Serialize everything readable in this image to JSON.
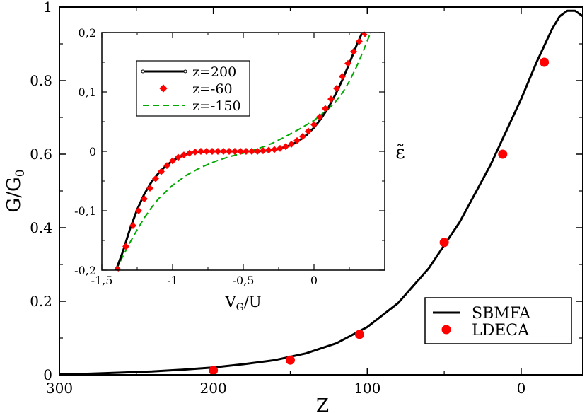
{
  "chart_data": [
    {
      "id": "main",
      "type": "line",
      "title": "",
      "xlabel": "Z",
      "ylabel": "G/G",
      "ylabel_sub": "0",
      "xlim": [
        300,
        -40
      ],
      "ylim": [
        0,
        1
      ],
      "xticks": [
        300,
        200,
        100,
        0
      ],
      "yticks": [
        0,
        0.2,
        0.4,
        0.6,
        0.8,
        1
      ],
      "xtick_labels": [
        "300",
        "200",
        "100",
        "0"
      ],
      "ytick_labels": [
        "0",
        "0.2",
        "0.4",
        "0.6",
        "0.8",
        "1"
      ],
      "legend_position": "bottom-right",
      "series": [
        {
          "name": "SBMFA",
          "style": "line",
          "color": "#000000",
          "x": [
            300,
            280,
            260,
            240,
            220,
            200,
            180,
            160,
            140,
            120,
            100,
            80,
            60,
            40,
            20,
            0,
            -10,
            -20,
            -25,
            -30,
            -35,
            -40
          ],
          "y": [
            0.001,
            0.003,
            0.006,
            0.009,
            0.014,
            0.02,
            0.029,
            0.04,
            0.058,
            0.086,
            0.13,
            0.195,
            0.29,
            0.415,
            0.57,
            0.75,
            0.85,
            0.94,
            0.975,
            0.99,
            0.99,
            0.975
          ]
        },
        {
          "name": "LDECA",
          "style": "markers",
          "color": "#ff0000",
          "x": [
            200,
            150,
            105,
            50,
            12,
            -15
          ],
          "y": [
            0.012,
            0.04,
            0.11,
            0.36,
            0.6,
            0.85
          ]
        }
      ]
    },
    {
      "id": "inset",
      "type": "line",
      "title": "",
      "xlabel": "V",
      "xlabel_sub": "G",
      "xlabel_suffix": "/U",
      "ylabel": "ε̃",
      "xlim": [
        -1.5,
        0.5
      ],
      "ylim": [
        -0.2,
        0.2
      ],
      "xticks": [
        -1.5,
        -1,
        -0.5,
        0
      ],
      "yticks": [
        -0.2,
        -0.1,
        0,
        0.1,
        0.2
      ],
      "xtick_labels": [
        "-1,5",
        "-1",
        "-0,5",
        "0"
      ],
      "ytick_labels": [
        "-0,2",
        "-0,1",
        "0",
        "0,1",
        "0,2"
      ],
      "legend_position": "top-left",
      "series": [
        {
          "name": "z=200",
          "style": "line-with-small-markers",
          "color": "#000000",
          "x": [
            -1.4,
            -1.35,
            -1.3,
            -1.25,
            -1.2,
            -1.15,
            -1.1,
            -1.05,
            -1.0,
            -0.95,
            -0.9,
            -0.85,
            -0.8,
            -0.75,
            -0.7,
            -0.65,
            -0.6,
            -0.55,
            -0.5,
            -0.45,
            -0.4,
            -0.35,
            -0.3,
            -0.25,
            -0.2,
            -0.15,
            -0.1,
            -0.05,
            0.0,
            0.05,
            0.1,
            0.15,
            0.2,
            0.25,
            0.3,
            0.35,
            0.4
          ],
          "y": [
            -0.2,
            -0.168,
            -0.13,
            -0.098,
            -0.072,
            -0.052,
            -0.037,
            -0.025,
            -0.016,
            -0.009,
            -0.005,
            -0.002,
            -0.001,
            0.0,
            0.0,
            0.0,
            0.0,
            0.0,
            0.0,
            0.0,
            0.0,
            0.001,
            0.002,
            0.004,
            0.007,
            0.012,
            0.019,
            0.028,
            0.04,
            0.055,
            0.073,
            0.095,
            0.12,
            0.148,
            0.178,
            0.205,
            0.2
          ]
        },
        {
          "name": "z=-60",
          "style": "markers",
          "color": "#ff0000",
          "x": [
            -1.39,
            -1.33,
            -1.28,
            -1.24,
            -1.2,
            -1.16,
            -1.12,
            -1.08,
            -1.04,
            -1.0,
            -0.96,
            -0.92,
            -0.88,
            -0.84,
            -0.8,
            -0.76,
            -0.72,
            -0.68,
            -0.64,
            -0.6,
            -0.56,
            -0.52,
            -0.48,
            -0.44,
            -0.4,
            -0.36,
            -0.32,
            -0.28,
            -0.24,
            -0.2,
            -0.16,
            -0.12,
            -0.08,
            -0.04,
            0.0,
            0.04,
            0.08,
            0.12,
            0.16,
            0.2,
            0.24,
            0.28,
            0.32,
            0.36
          ],
          "y": [
            -0.198,
            -0.16,
            -0.125,
            -0.1,
            -0.08,
            -0.062,
            -0.046,
            -0.034,
            -0.024,
            -0.016,
            -0.01,
            -0.006,
            -0.003,
            -0.001,
            0.0,
            0.0,
            0.0,
            0.0,
            0.0,
            0.0,
            0.0,
            0.0,
            0.0,
            0.0,
            0.0,
            0.001,
            0.002,
            0.003,
            0.005,
            0.008,
            0.012,
            0.018,
            0.025,
            0.034,
            0.045,
            0.058,
            0.072,
            0.088,
            0.106,
            0.126,
            0.148,
            0.168,
            0.185,
            0.198
          ]
        },
        {
          "name": "z=-150",
          "style": "dashed-line",
          "color": "#00aa00",
          "x": [
            -1.4,
            -1.35,
            -1.3,
            -1.25,
            -1.2,
            -1.15,
            -1.1,
            -1.0,
            -0.9,
            -0.8,
            -0.7,
            -0.6,
            -0.5,
            -0.4,
            -0.3,
            -0.2,
            -0.1,
            0.0,
            0.1,
            0.15,
            0.2,
            0.25,
            0.3,
            0.35,
            0.4
          ],
          "y": [
            -0.2,
            -0.176,
            -0.153,
            -0.132,
            -0.112,
            -0.095,
            -0.08,
            -0.057,
            -0.04,
            -0.027,
            -0.017,
            -0.009,
            -0.003,
            0.004,
            0.013,
            0.025,
            0.038,
            0.052,
            0.071,
            0.083,
            0.098,
            0.118,
            0.142,
            0.17,
            0.2
          ]
        }
      ]
    }
  ]
}
